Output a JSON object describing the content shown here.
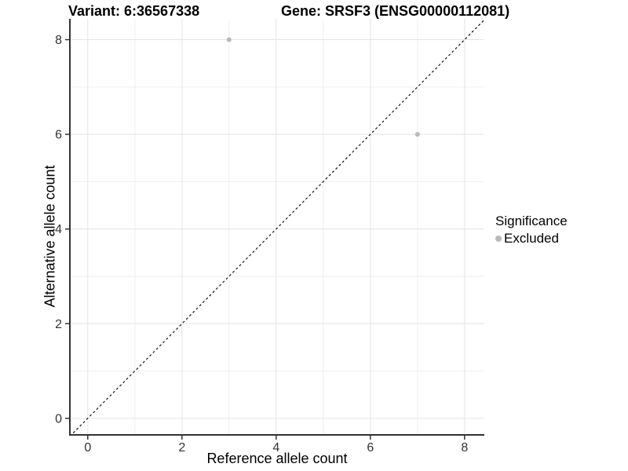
{
  "title": {
    "variant": "Variant: 6:36567338",
    "gene": "Gene: SRSF3 (ENSG00000112081)"
  },
  "axes": {
    "x_label": "Reference allele count",
    "y_label": "Alternative allele count"
  },
  "legend": {
    "title": "Significance",
    "items": [
      {
        "label": "Excluded",
        "color": "#b9b9b9"
      }
    ]
  },
  "colors": {
    "background": "#ffffff",
    "grid_major": "#e4e4e4",
    "grid_minor": "#efefef",
    "axis_line": "#333333",
    "tick_label": "#333333",
    "point": "#b9b9b9",
    "reference_line": "#000000"
  },
  "chart_data": {
    "type": "scatter",
    "title": "Variant: 6:36567338    Gene: SRSF3 (ENSG00000112081)",
    "xlabel": "Reference allele count",
    "ylabel": "Alternative allele count",
    "xlim": [
      -0.38,
      8.42
    ],
    "ylim": [
      -0.35,
      8.44
    ],
    "x_ticks": [
      0,
      2,
      4,
      6,
      8
    ],
    "y_ticks": [
      0,
      2,
      4,
      6,
      8
    ],
    "x_minor_ticks": [
      1,
      3,
      5,
      7
    ],
    "y_minor_ticks": [
      1,
      3,
      5,
      7
    ],
    "grid": true,
    "legend_position": "right",
    "series": [
      {
        "name": "Excluded",
        "color": "#b9b9b9",
        "points": [
          {
            "x": 3,
            "y": 8
          },
          {
            "x": 7,
            "y": 6
          }
        ]
      }
    ],
    "reference_line": {
      "type": "identity",
      "style": "dashed",
      "color": "#000000"
    }
  }
}
